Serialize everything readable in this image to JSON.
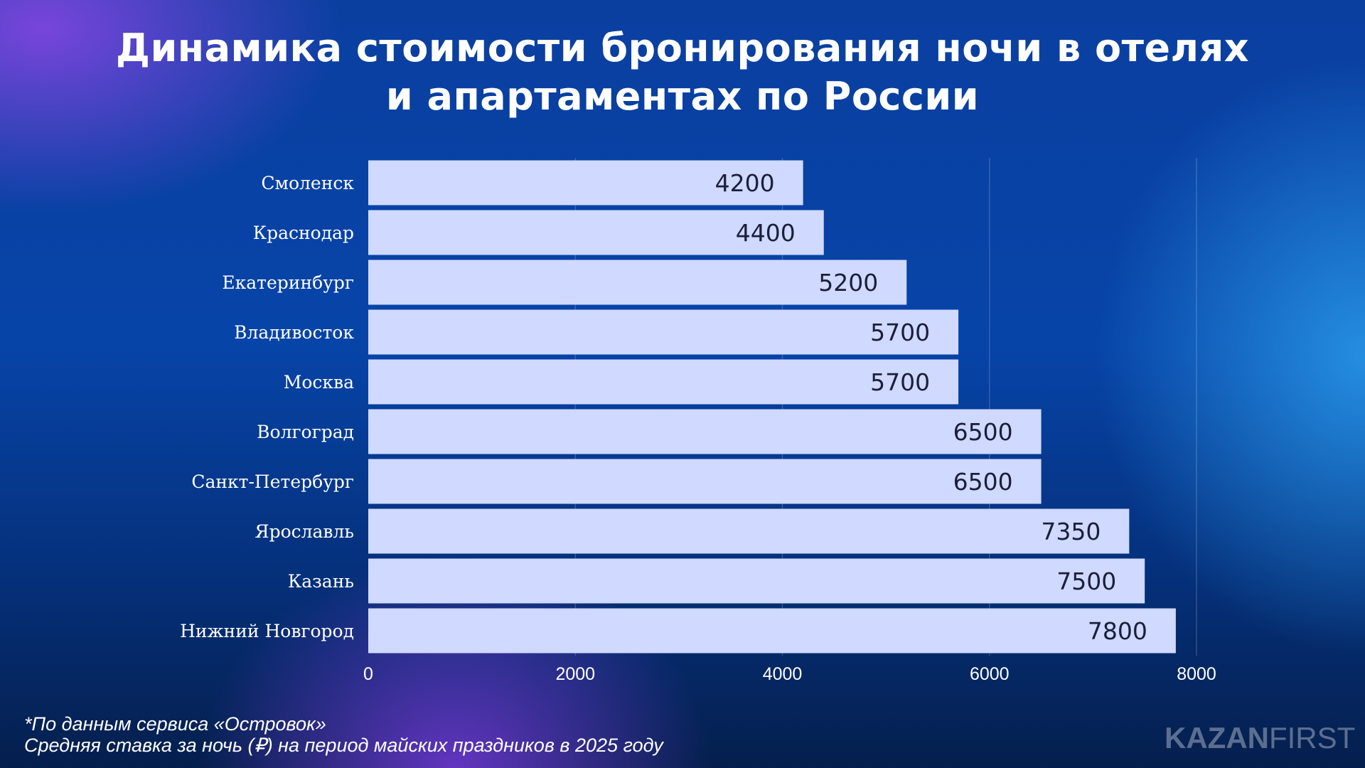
{
  "title": {
    "line1": "Динамика стоимости бронирования ночи в отелях",
    "line2": "и апартаментах по России"
  },
  "chart_data": {
    "type": "bar",
    "orientation": "horizontal",
    "categories": [
      "Смоленск",
      "Краснодар",
      "Екатеринбург",
      "Владивосток",
      "Москва",
      "Волгоград",
      "Санкт-Петербург",
      "Ярославль",
      "Казань",
      "Нижний Новгород"
    ],
    "values": [
      4200,
      4400,
      5200,
      5700,
      5700,
      6500,
      6500,
      7350,
      7500,
      7800
    ],
    "xlim": [
      0,
      8000
    ],
    "xticks": [
      0,
      2000,
      4000,
      6000,
      8000
    ],
    "grid": "vertical",
    "bar_color": "#d0d9ff",
    "value_label_color": "#1a1f3a"
  },
  "footnote": {
    "line1": "*По данным сервиса «Островок»",
    "line2": "Средняя ставка за ночь (₽) на период майских праздников в 2025 году"
  },
  "logo": {
    "part1": "KAZAN",
    "part2": "FIRST"
  }
}
